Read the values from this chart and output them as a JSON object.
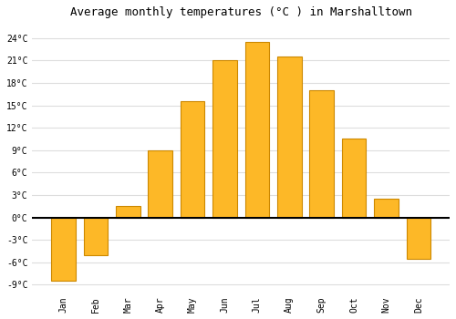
{
  "months": [
    "Jan",
    "Feb",
    "Mar",
    "Apr",
    "May",
    "Jun",
    "Jul",
    "Aug",
    "Sep",
    "Oct",
    "Nov",
    "Dec"
  ],
  "values": [
    -8.5,
    -5.0,
    1.5,
    9.0,
    15.5,
    21.0,
    23.5,
    21.5,
    17.0,
    10.5,
    2.5,
    -5.5
  ],
  "bar_color": "#FDB827",
  "bar_edge_color": "#CC8800",
  "title": "Average monthly temperatures (°C ) in Marshalltown",
  "title_fontsize": 9,
  "ylim": [
    -10,
    26
  ],
  "yticks": [
    -9,
    -6,
    -3,
    0,
    3,
    6,
    9,
    12,
    15,
    18,
    21,
    24
  ],
  "ytick_labels": [
    "-9°C",
    "-6°C",
    "-3°C",
    "0°C",
    "3°C",
    "6°C",
    "9°C",
    "12°C",
    "15°C",
    "18°C",
    "21°C",
    "24°C"
  ],
  "background_color": "#FFFFFF",
  "grid_color": "#DDDDDD",
  "zero_line_color": "#000000"
}
